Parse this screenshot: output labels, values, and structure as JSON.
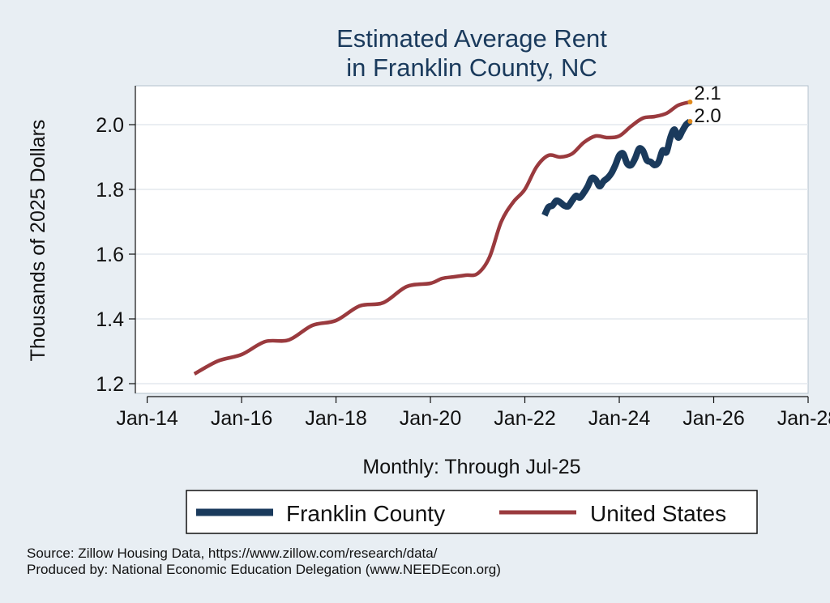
{
  "chart_data": {
    "type": "line",
    "title": [
      "Estimated Average Rent",
      "in Franklin County, NC"
    ],
    "xlabel": "Monthly: Through Jul-25",
    "ylabel": "Thousands of 2025 Dollars",
    "x_axis": {
      "type": "date",
      "range": [
        "2013-10-01",
        "2028-01-01"
      ],
      "ticks": [
        "2014-01-01",
        "2016-01-01",
        "2018-01-01",
        "2020-01-01",
        "2022-01-01",
        "2024-01-01",
        "2026-01-01",
        "2028-01-01"
      ],
      "tick_labels": [
        "Jan-14",
        "Jan-16",
        "Jan-18",
        "Jan-20",
        "Jan-22",
        "Jan-24",
        "Jan-26",
        "Jan-28"
      ]
    },
    "y_axis": {
      "range": [
        1.17,
        2.12
      ],
      "ticks": [
        1.2,
        1.4,
        1.6,
        1.8,
        2.0
      ],
      "tick_labels": [
        "1.2",
        "1.4",
        "1.6",
        "1.8",
        "2.0"
      ]
    },
    "grid": {
      "horizontal": true,
      "vertical": false
    },
    "legend": {
      "position": "bottom",
      "border": true
    },
    "colors": {
      "background": "#e8eef3",
      "plot_background": "#ffffff",
      "franklin": "#1a3a5c",
      "us": "#9a3a3e",
      "endpoint": "#e08a1e",
      "title": "#1a3a5c"
    },
    "series": [
      {
        "name": "Franklin County",
        "color": "#1a3a5c",
        "end_label": "2.0",
        "points": [
          [
            "2022-06",
            1.72
          ],
          [
            "2022-07",
            1.745
          ],
          [
            "2022-08",
            1.75
          ],
          [
            "2022-09",
            1.765
          ],
          [
            "2022-10",
            1.76
          ],
          [
            "2022-11",
            1.75
          ],
          [
            "2022-12",
            1.748
          ],
          [
            "2023-01",
            1.765
          ],
          [
            "2023-02",
            1.78
          ],
          [
            "2023-03",
            1.775
          ],
          [
            "2023-04",
            1.79
          ],
          [
            "2023-05",
            1.81
          ],
          [
            "2023-06",
            1.835
          ],
          [
            "2023-07",
            1.83
          ],
          [
            "2023-08",
            1.81
          ],
          [
            "2023-09",
            1.825
          ],
          [
            "2023-10",
            1.835
          ],
          [
            "2023-11",
            1.85
          ],
          [
            "2023-12",
            1.875
          ],
          [
            "2024-01",
            1.905
          ],
          [
            "2024-02",
            1.91
          ],
          [
            "2024-03",
            1.88
          ],
          [
            "2024-04",
            1.875
          ],
          [
            "2024-05",
            1.895
          ],
          [
            "2024-06",
            1.925
          ],
          [
            "2024-07",
            1.92
          ],
          [
            "2024-08",
            1.89
          ],
          [
            "2024-09",
            1.885
          ],
          [
            "2024-10",
            1.875
          ],
          [
            "2024-11",
            1.885
          ],
          [
            "2024-12",
            1.92
          ],
          [
            "2025-01",
            1.915
          ],
          [
            "2025-02",
            1.96
          ],
          [
            "2025-03",
            1.985
          ],
          [
            "2025-04",
            1.96
          ],
          [
            "2025-05",
            1.98
          ],
          [
            "2025-06",
            2.0
          ],
          [
            "2025-07",
            2.01
          ]
        ]
      },
      {
        "name": "United States",
        "color": "#9a3a3e",
        "end_label": "2.1",
        "points": [
          [
            "2015-01",
            1.23
          ],
          [
            "2015-07",
            1.27
          ],
          [
            "2016-01",
            1.29
          ],
          [
            "2016-07",
            1.33
          ],
          [
            "2017-01",
            1.335
          ],
          [
            "2017-07",
            1.38
          ],
          [
            "2018-01",
            1.395
          ],
          [
            "2018-07",
            1.44
          ],
          [
            "2019-01",
            1.45
          ],
          [
            "2019-07",
            1.5
          ],
          [
            "2020-01",
            1.51
          ],
          [
            "2020-04",
            1.525
          ],
          [
            "2020-07",
            1.53
          ],
          [
            "2020-10",
            1.535
          ],
          [
            "2021-01",
            1.54
          ],
          [
            "2021-04",
            1.59
          ],
          [
            "2021-07",
            1.7
          ],
          [
            "2021-10",
            1.76
          ],
          [
            "2022-01",
            1.8
          ],
          [
            "2022-04",
            1.87
          ],
          [
            "2022-07",
            1.905
          ],
          [
            "2022-10",
            1.9
          ],
          [
            "2023-01",
            1.91
          ],
          [
            "2023-04",
            1.945
          ],
          [
            "2023-07",
            1.965
          ],
          [
            "2023-10",
            1.96
          ],
          [
            "2024-01",
            1.965
          ],
          [
            "2024-04",
            1.995
          ],
          [
            "2024-07",
            2.02
          ],
          [
            "2024-10",
            2.025
          ],
          [
            "2025-01",
            2.035
          ],
          [
            "2025-04",
            2.06
          ],
          [
            "2025-07",
            2.07
          ]
        ]
      }
    ],
    "source_note": "Source: Zillow Housing Data, https://www.zillow.com/research/data/",
    "producer_note": "Produced by: National Economic Education Delegation (www.NEEDEcon.org)"
  }
}
